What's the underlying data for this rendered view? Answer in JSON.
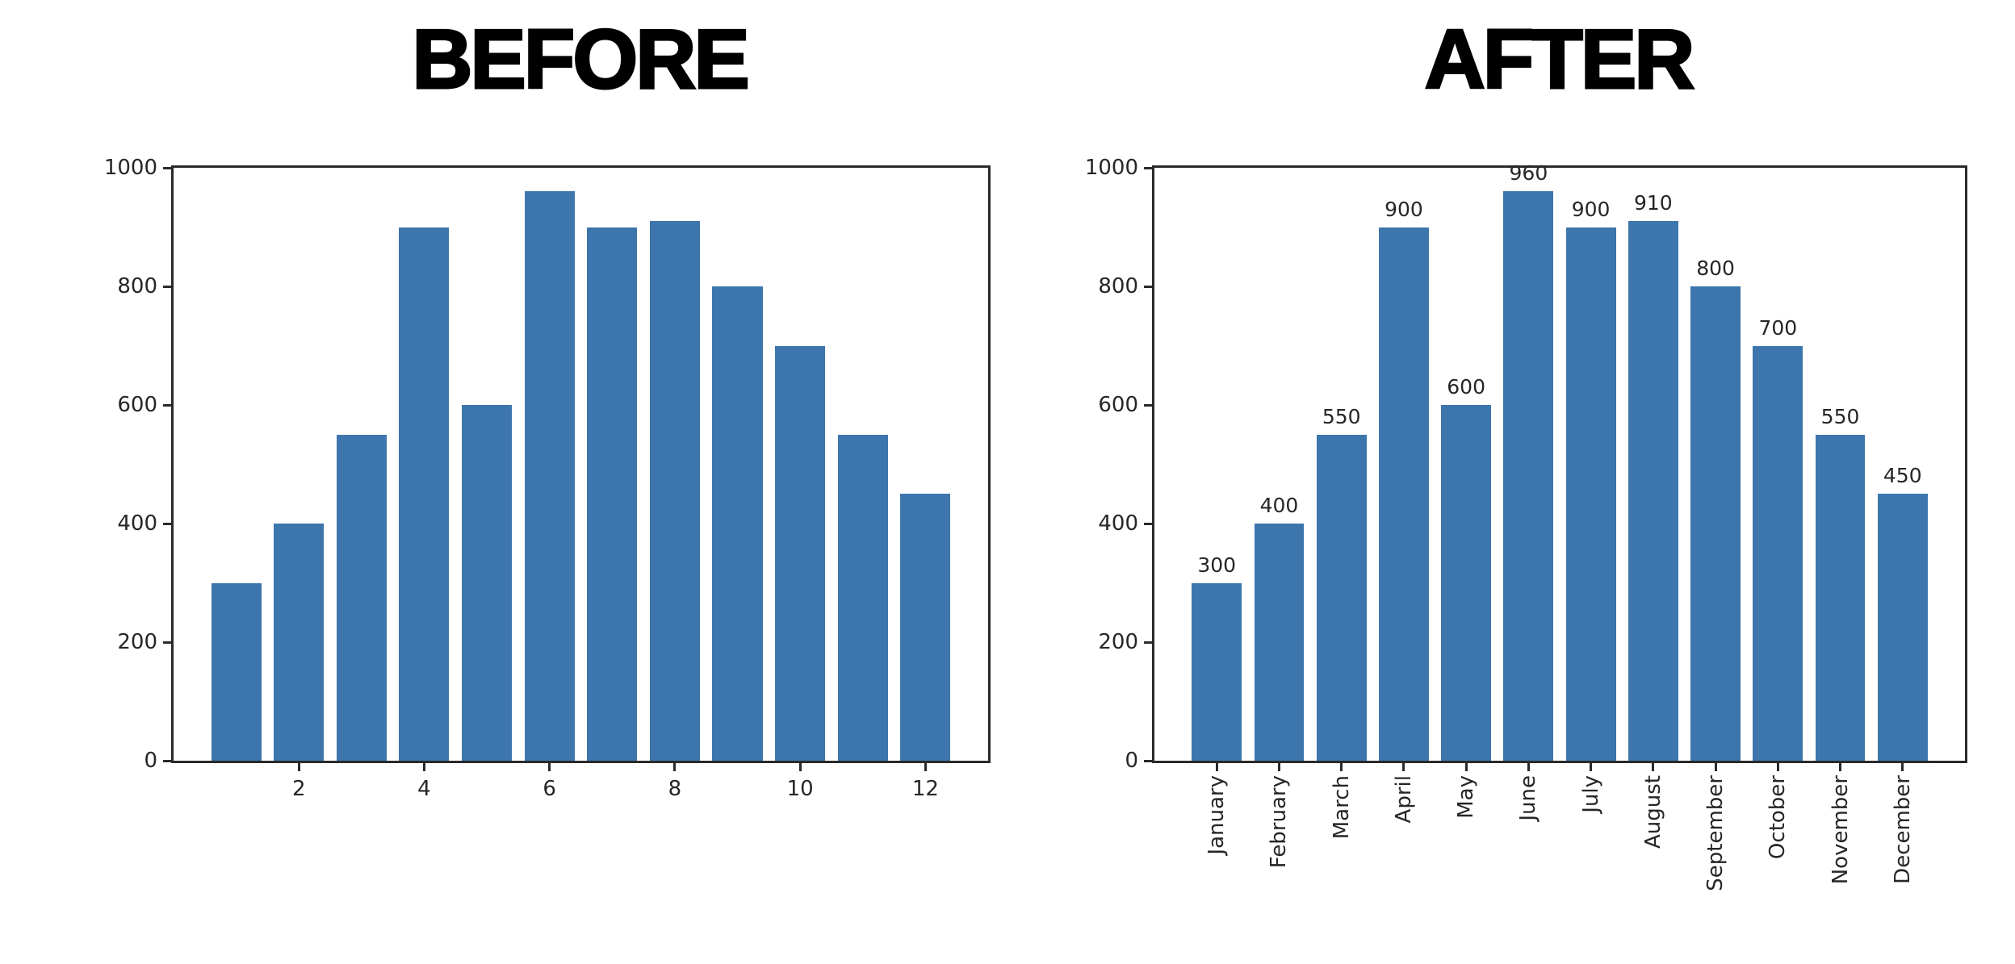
{
  "style": {
    "background": "#ffffff",
    "bar_color": "#3d76ad",
    "axis_color": "#2a2a2a",
    "tick_text_color": "#262626",
    "title_color": "#000000"
  },
  "chart_data": [
    {
      "type": "bar",
      "title": "BEFORE",
      "x": [
        1,
        2,
        3,
        4,
        5,
        6,
        7,
        8,
        9,
        10,
        11,
        12
      ],
      "values": [
        300,
        400,
        550,
        900,
        600,
        960,
        900,
        910,
        800,
        700,
        550,
        450
      ],
      "xticks": [
        2,
        4,
        6,
        8,
        10,
        12
      ],
      "yticks": [
        0,
        200,
        400,
        600,
        800,
        1000
      ],
      "ylim": [
        0,
        1000
      ],
      "xlabel": "",
      "ylabel": "",
      "grid": false,
      "legend": null,
      "bar_width_ratio": 0.8,
      "show_bar_labels": false,
      "bar_color": "#3d76ad"
    },
    {
      "type": "bar",
      "title": "AFTER",
      "categories": [
        "January",
        "February",
        "March",
        "April",
        "May",
        "June",
        "July",
        "August",
        "September",
        "October",
        "November",
        "December"
      ],
      "values": [
        300,
        400,
        550,
        900,
        600,
        960,
        900,
        910,
        800,
        700,
        550,
        450
      ],
      "bar_labels": [
        "300",
        "400",
        "550",
        "900",
        "600",
        "960",
        "900",
        "910",
        "800",
        "700",
        "550",
        "450"
      ],
      "yticks": [
        0,
        200,
        400,
        600,
        800,
        1000
      ],
      "ylim": [
        0,
        1000
      ],
      "xlabel": "",
      "ylabel": "",
      "grid": false,
      "legend": null,
      "bar_width_ratio": 0.8,
      "show_bar_labels": true,
      "xtick_rotation": 90,
      "bar_color": "#3d76ad"
    }
  ]
}
